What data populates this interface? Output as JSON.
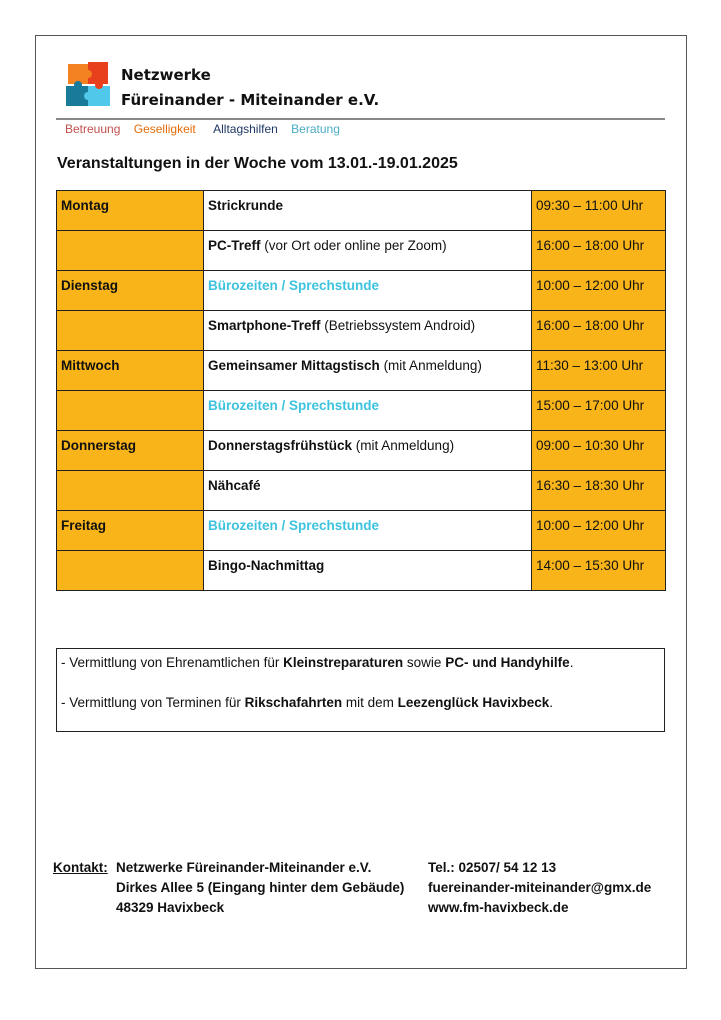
{
  "header": {
    "org_line1": "Netzwerke",
    "org_line2": "Füreinander - Miteinander e.V.",
    "tags": [
      {
        "label": "Betreuung",
        "color": "#C0504D"
      },
      {
        "label": "Geselligkeit",
        "color": "#E46C0A"
      },
      {
        "label": "Alltagshilfen",
        "color": "#1F3864"
      },
      {
        "label": "Beratung",
        "color": "#4BACC6"
      }
    ]
  },
  "title": "Veranstaltungen in der Woche vom 13.01.-19.01.2025",
  "colors": {
    "day_bg": "#F8B418",
    "highlight_text": "#3EC3DE"
  },
  "schedule": [
    {
      "day": "Montag",
      "event": "Strickrunde",
      "extra": "",
      "time": "09:30 – 11:00 Uhr"
    },
    {
      "day": "",
      "event": "PC-Treff",
      "extra": " (vor Ort oder online per Zoom)",
      "time": "16:00 – 18:00 Uhr"
    },
    {
      "day": "Dienstag",
      "event": "Bürozeiten / Sprechstunde",
      "extra": "",
      "time": "10:00 – 12:00 Uhr",
      "highlight": true
    },
    {
      "day": "",
      "event": "Smartphone-Treff",
      "extra": " (Betriebssystem Android)",
      "time": "16:00 – 18:00 Uhr"
    },
    {
      "day": "Mittwoch",
      "event": "Gemeinsamer Mittagstisch",
      "extra": " (mit Anmeldung)",
      "time": "11:30 – 13:00 Uhr"
    },
    {
      "day": "",
      "event": "Bürozeiten / Sprechstunde",
      "extra": "",
      "time": "15:00 – 17:00 Uhr",
      "highlight": true
    },
    {
      "day": "Donnerstag",
      "event": "Donnerstagsfrühstück",
      "extra": " (mit Anmeldung)",
      "time": "09:00 – 10:30 Uhr"
    },
    {
      "day": "",
      "event": "Nähcafé",
      "extra": "",
      "time": "16:30 – 18:30 Uhr"
    },
    {
      "day": "Freitag",
      "event": "Bürozeiten / Sprechstunde",
      "extra": "",
      "time": "10:00 – 12:00 Uhr",
      "highlight": true
    },
    {
      "day": "",
      "event": "Bingo-Nachmittag",
      "extra": "",
      "time": "14:00 – 15:30 Uhr"
    }
  ],
  "notes": {
    "line1": {
      "a": "- Vermittlung von Ehrenamtlichen für ",
      "b": "Kleinstreparaturen",
      "c": " sowie ",
      "d": "PC- und Handyhilfe",
      "e": "."
    },
    "line2": {
      "a": "- Vermittlung von Terminen für ",
      "b": "Rikschafahrten",
      "c": " mit dem ",
      "d": "Leezenglück Havixbeck",
      "e": "."
    }
  },
  "contact": {
    "label": "Kontakt:",
    "name": "Netzwerke Füreinander-Miteinander e.V.",
    "street": "Dirkes Allee 5 (Eingang hinter dem Gebäude)",
    "city": "48329 Havixbeck",
    "phone": "Tel.: 02507/ 54 12 13",
    "email": "fuereinander-miteinander@gmx.de",
    "web": "www.fm-havixbeck.de"
  }
}
